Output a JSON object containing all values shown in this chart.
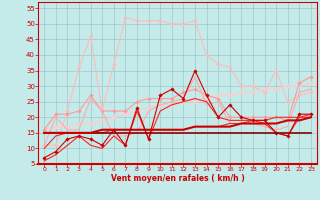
{
  "xlabel": "Vent moyen/en rafales ( km/h )",
  "xlim": [
    -0.5,
    23.5
  ],
  "ylim": [
    5,
    57
  ],
  "yticks": [
    5,
    10,
    15,
    20,
    25,
    30,
    35,
    40,
    45,
    50,
    55
  ],
  "xticks": [
    0,
    1,
    2,
    3,
    4,
    5,
    6,
    7,
    8,
    9,
    10,
    11,
    12,
    13,
    14,
    15,
    16,
    17,
    18,
    19,
    20,
    21,
    22,
    23
  ],
  "bg_color": "#c5eaea",
  "grid_color": "#a0c8c8",
  "lines": [
    {
      "x": [
        0,
        1,
        2,
        3,
        4,
        5,
        6,
        7,
        8,
        9,
        10,
        11,
        12,
        13,
        14,
        15,
        16,
        17,
        18,
        19,
        20,
        21,
        22,
        23
      ],
      "y": [
        11,
        11,
        22,
        36,
        46,
        22,
        37,
        52,
        51,
        51,
        51,
        50,
        50,
        51,
        40,
        37,
        36,
        30,
        30,
        28,
        35,
        25,
        27,
        28
      ],
      "color": "#ffbbbb",
      "lw": 0.8,
      "marker": "D",
      "ms": 1.8,
      "zorder": 2
    },
    {
      "x": [
        0,
        1,
        2,
        3,
        4,
        5,
        6,
        7,
        8,
        9,
        10,
        11,
        12,
        13,
        14,
        15,
        16,
        17,
        18,
        19,
        20,
        21,
        22,
        23
      ],
      "y": [
        16,
        21,
        21,
        22,
        27,
        22,
        22,
        22,
        25,
        26,
        26,
        26,
        28,
        29,
        27,
        26,
        20,
        20,
        20,
        20,
        20,
        19,
        31,
        33
      ],
      "color": "#ff9999",
      "lw": 0.8,
      "marker": "D",
      "ms": 1.8,
      "zorder": 3
    },
    {
      "x": [
        0,
        1,
        2,
        3,
        4,
        5,
        6,
        7,
        8,
        9,
        10,
        11,
        12,
        13,
        14,
        15,
        16,
        17,
        18,
        19,
        20,
        21,
        22,
        23
      ],
      "y": [
        16,
        17,
        17,
        18,
        18,
        19,
        20,
        21,
        22,
        23,
        24,
        24,
        25,
        25,
        26,
        27,
        27,
        28,
        28,
        29,
        29,
        30,
        30,
        31
      ],
      "color": "#ffcccc",
      "lw": 1.0,
      "marker": "D",
      "ms": 1.8,
      "zorder": 2
    },
    {
      "x": [
        0,
        1,
        2,
        3,
        4,
        5,
        6,
        7,
        8,
        9,
        10,
        11,
        12,
        13,
        14,
        15,
        16,
        17,
        18,
        19,
        20,
        21,
        22,
        23
      ],
      "y": [
        7,
        9,
        13,
        14,
        13,
        11,
        16,
        11,
        23,
        13,
        27,
        29,
        26,
        35,
        27,
        20,
        24,
        20,
        19,
        19,
        15,
        14,
        21,
        21
      ],
      "color": "#cc0000",
      "lw": 0.8,
      "marker": "D",
      "ms": 1.8,
      "zorder": 6
    },
    {
      "x": [
        0,
        1,
        2,
        3,
        4,
        5,
        6,
        7,
        8,
        9,
        10,
        11,
        12,
        13,
        14,
        15,
        16,
        17,
        18,
        19,
        20,
        21,
        22,
        23
      ],
      "y": [
        15,
        15,
        15,
        15,
        15,
        15,
        15,
        15,
        15,
        15,
        15,
        15,
        15,
        15,
        15,
        15,
        15,
        15,
        15,
        15,
        15,
        15,
        15,
        15
      ],
      "color": "#880000",
      "lw": 1.2,
      "marker": null,
      "ms": 0,
      "zorder": 7
    },
    {
      "x": [
        0,
        1,
        2,
        3,
        4,
        5,
        6,
        7,
        8,
        9,
        10,
        11,
        12,
        13,
        14,
        15,
        16,
        17,
        18,
        19,
        20,
        21,
        22,
        23
      ],
      "y": [
        15,
        15,
        15,
        15,
        15,
        16,
        16,
        16,
        16,
        16,
        16,
        16,
        16,
        17,
        17,
        17,
        17,
        18,
        18,
        18,
        18,
        19,
        19,
        20
      ],
      "color": "#cc0000",
      "lw": 1.5,
      "marker": null,
      "ms": 0,
      "zorder": 7
    },
    {
      "x": [
        0,
        1,
        2,
        3,
        4,
        5,
        6,
        7,
        8,
        9,
        10,
        11,
        12,
        13,
        14,
        15,
        16,
        17,
        18,
        19,
        20,
        21,
        22,
        23
      ],
      "y": [
        10,
        14,
        15,
        15,
        15,
        15,
        16,
        16,
        16,
        16,
        16,
        16,
        16,
        17,
        17,
        17,
        18,
        18,
        19,
        19,
        20,
        20,
        20,
        21
      ],
      "color": "#dd3333",
      "lw": 0.8,
      "marker": null,
      "ms": 0,
      "zorder": 5
    },
    {
      "x": [
        0,
        1,
        2,
        3,
        4,
        5,
        6,
        7,
        8,
        9,
        10,
        11,
        12,
        13,
        14,
        15,
        16,
        17,
        18,
        19,
        20,
        21,
        22,
        23
      ],
      "y": [
        6,
        8,
        11,
        14,
        11,
        10,
        14,
        11,
        22,
        13,
        22,
        24,
        25,
        26,
        25,
        20,
        19,
        19,
        19,
        18,
        15,
        14,
        20,
        20
      ],
      "color": "#ff2222",
      "lw": 0.8,
      "marker": null,
      "ms": 0,
      "zorder": 4
    },
    {
      "x": [
        0,
        1,
        2,
        3,
        4,
        5,
        6,
        7,
        8,
        9,
        10,
        11,
        12,
        13,
        14,
        15,
        16,
        17,
        18,
        19,
        20,
        21,
        22,
        23
      ],
      "y": [
        11,
        20,
        16,
        16,
        26,
        22,
        14,
        14,
        15,
        22,
        24,
        25,
        26,
        33,
        24,
        25,
        18,
        18,
        18,
        17,
        16,
        17,
        28,
        29
      ],
      "color": "#ffaaaa",
      "lw": 0.8,
      "marker": null,
      "ms": 0,
      "zorder": 3
    }
  ]
}
